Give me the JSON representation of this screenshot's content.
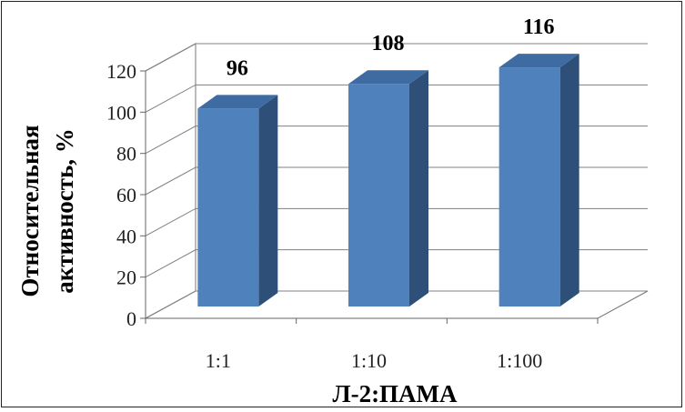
{
  "chart_data": {
    "type": "bar",
    "categories": [
      "1:1",
      "1:10",
      "1:100"
    ],
    "values": [
      96,
      108,
      116
    ],
    "data_labels": [
      "96",
      "108",
      "116"
    ],
    "xlabel": "Л-2:ПАМА",
    "ylabel_lines": [
      "Относительная",
      "активность, %"
    ],
    "ylim": [
      0,
      120
    ],
    "yticks": [
      0,
      20,
      40,
      60,
      80,
      100,
      120
    ],
    "grid": true,
    "bar_color": "#4f81bd",
    "bar_top_color": "#3f6ba3",
    "bar_side_color": "#2e4f78",
    "three_d": true
  }
}
